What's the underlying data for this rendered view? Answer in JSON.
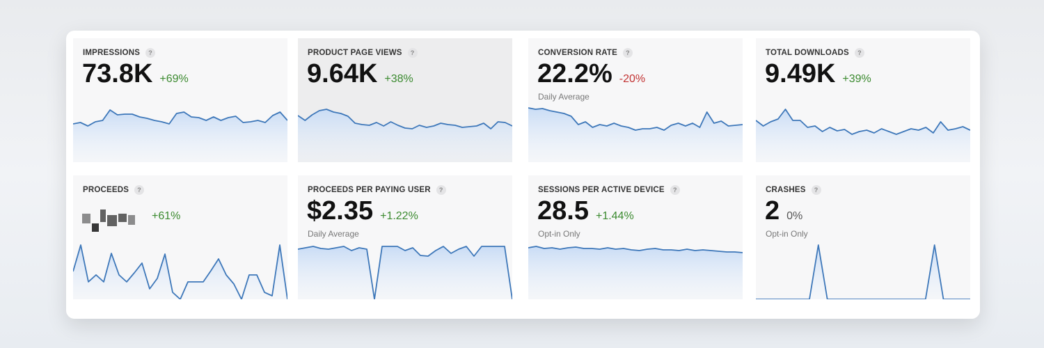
{
  "cards": [
    {
      "title": "IMPRESSIONS",
      "value": "73.8K",
      "change": "+69%",
      "trend": "up",
      "sparkline": [
        55,
        57,
        52,
        58,
        60,
        75,
        68,
        69,
        69,
        65,
        63,
        60,
        58,
        55,
        70,
        72,
        65,
        64,
        60,
        65,
        60,
        64,
        66,
        57,
        58,
        60,
        57,
        67,
        72,
        60
      ]
    },
    {
      "title": "PRODUCT PAGE VIEWS",
      "value": "9.64K",
      "change": "+38%",
      "trend": "up",
      "selected": true,
      "sparkline": [
        67,
        60,
        68,
        74,
        76,
        72,
        70,
        66,
        56,
        54,
        53,
        57,
        52,
        58,
        53,
        49,
        48,
        53,
        50,
        52,
        56,
        54,
        53,
        50,
        51,
        52,
        56,
        48,
        58,
        57,
        52
      ]
    },
    {
      "title": "CONVERSION RATE",
      "value": "22.2%",
      "change": "-20%",
      "trend": "down",
      "subtitle": "Daily Average",
      "sparkline": [
        78,
        76,
        77,
        74,
        72,
        70,
        66,
        54,
        58,
        50,
        54,
        52,
        56,
        52,
        50,
        46,
        48,
        48,
        50,
        46,
        53,
        56,
        52,
        56,
        50,
        72,
        56,
        59,
        52,
        53,
        54
      ]
    },
    {
      "title": "TOTAL DOWNLOADS",
      "value": "9.49K",
      "change": "+39%",
      "trend": "up",
      "sparkline": [
        60,
        52,
        58,
        62,
        76,
        60,
        60,
        50,
        52,
        44,
        50,
        45,
        47,
        40,
        44,
        46,
        42,
        48,
        44,
        40,
        44,
        48,
        46,
        50,
        42,
        58,
        46,
        48,
        51,
        46
      ]
    },
    {
      "title": "PROCEEDS",
      "change": "+61%",
      "trend": "up",
      "sparkline": [
        40,
        78,
        25,
        35,
        25,
        66,
        35,
        25,
        38,
        52,
        15,
        30,
        65,
        10,
        0,
        25,
        25,
        25,
        41,
        58,
        35,
        22,
        0,
        35,
        35,
        10,
        5,
        78,
        0
      ]
    },
    {
      "title": "PROCEEDS PER PAYING USER",
      "value": "$2.35",
      "change": "+1.22%",
      "trend": "up",
      "subtitle": "Daily Average",
      "sparkline": [
        72,
        74,
        76,
        73,
        72,
        74,
        76,
        70,
        74,
        72,
        0,
        76,
        76,
        76,
        70,
        74,
        63,
        62,
        70,
        76,
        66,
        72,
        76,
        62,
        76,
        76,
        76,
        76,
        0
      ]
    },
    {
      "title": "SESSIONS PER ACTIVE DEVICE",
      "value": "28.5",
      "change": "+1.44%",
      "trend": "up",
      "subtitle": "Opt-in Only",
      "sparkline": [
        74,
        76,
        73,
        74,
        72,
        74,
        75,
        73,
        73,
        72,
        74,
        72,
        73,
        71,
        70,
        72,
        73,
        71,
        71,
        70,
        72,
        70,
        71,
        70,
        69,
        68,
        68,
        67
      ]
    },
    {
      "title": "CRASHES",
      "value": "2",
      "change": "0%",
      "trend": "flat",
      "subtitle": "Opt-in Only",
      "sparkline": [
        0,
        0,
        0,
        0,
        0,
        0,
        0,
        78,
        0,
        0,
        0,
        0,
        0,
        0,
        0,
        0,
        0,
        0,
        0,
        0,
        78,
        0,
        0,
        0,
        0
      ]
    }
  ]
}
